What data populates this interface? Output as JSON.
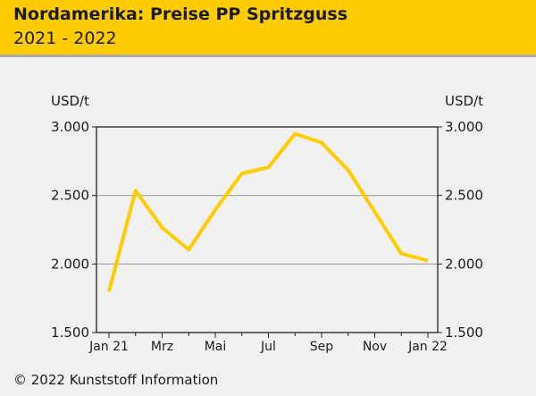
{
  "header": {
    "title": "Nordamerika: Preise PP Spritzguss",
    "subtitle": "2021 - 2022"
  },
  "footer": {
    "copyright": "© 2022 Kunststoff Information"
  },
  "colors": {
    "header": "#ffcc00",
    "line": "#ffcc00",
    "background": "#f0f1f0",
    "grid": "#a0a0a0"
  },
  "chart_data": {
    "type": "line",
    "ylabel_left": "USD/t",
    "ylabel_right": "USD/t",
    "ylim": [
      1500,
      3000
    ],
    "yticks": [
      1500,
      2000,
      2500,
      3000
    ],
    "ytick_labels": [
      "1.500",
      "2.000",
      "2.500",
      "3.000"
    ],
    "grid": "horizontal",
    "x": [
      "Jan 21",
      "Feb 21",
      "Mrz 21",
      "Apr 21",
      "Mai 21",
      "Jun 21",
      "Jul 21",
      "Aug 21",
      "Sep 21",
      "Okt 21",
      "Nov 21",
      "Dez 21",
      "Jan 22"
    ],
    "xtick_labels": [
      "Jan 21",
      "",
      "Mrz",
      "",
      "Mai",
      "",
      "Jul",
      "",
      "Sep",
      "",
      "Nov",
      "",
      "Jan 22"
    ],
    "series": [
      {
        "values": [
          1800,
          2535,
          2265,
          2105,
          2395,
          2660,
          2705,
          2950,
          2885,
          2685,
          2380,
          2075,
          2025
        ]
      }
    ]
  }
}
